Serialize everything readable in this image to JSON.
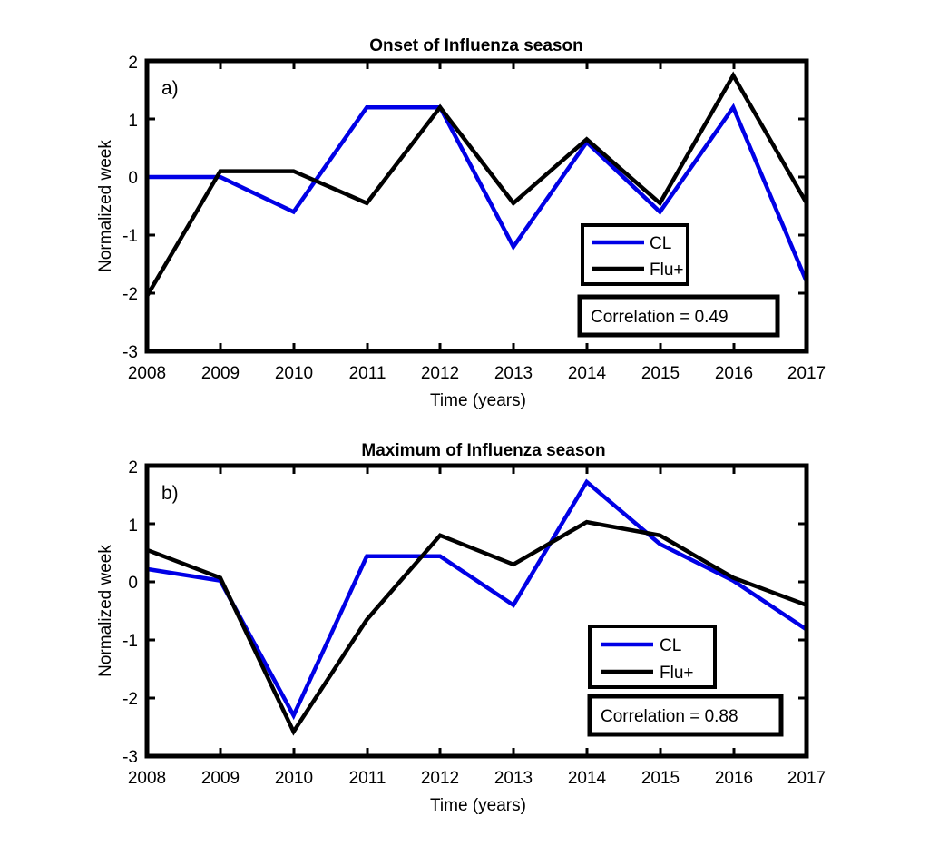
{
  "chart_data": [
    {
      "type": "line",
      "title": "Onset of Influenza season",
      "panel_label": "a)",
      "xlabel": "Time (years)",
      "ylabel": "Normalized week",
      "xlim": [
        2008,
        2017
      ],
      "ylim": [
        -3,
        2
      ],
      "x_ticks": [
        "2008",
        "2009",
        "2010",
        "2011",
        "2012",
        "2013",
        "2014",
        "2015",
        "2016",
        "2017"
      ],
      "y_ticks": [
        "2",
        "1",
        "0",
        "-1",
        "-2",
        "-3"
      ],
      "x": [
        2008,
        2009,
        2010,
        2011,
        2012,
        2013,
        2014,
        2015,
        2016,
        2017
      ],
      "series": [
        {
          "name": "CL",
          "color": "#0000e6",
          "values": [
            0,
            0,
            -0.6,
            1.2,
            1.2,
            -1.2,
            0.6,
            -0.6,
            1.2,
            -1.8
          ]
        },
        {
          "name": "Flu+",
          "color": "#000000",
          "values": [
            -2.05,
            0.1,
            0.1,
            -0.45,
            1.2,
            -0.45,
            0.65,
            -0.45,
            1.75,
            -0.45
          ]
        }
      ],
      "legend": {
        "position": "lower-right"
      },
      "annotation": "Correlation = 0.49"
    },
    {
      "type": "line",
      "title": "Maximum of Influenza season",
      "panel_label": "b)",
      "xlabel": "Time (years)",
      "ylabel": "Normalized week",
      "xlim": [
        2008,
        2017
      ],
      "ylim": [
        -3,
        2
      ],
      "x_ticks": [
        "2008",
        "2009",
        "2010",
        "2011",
        "2012",
        "2013",
        "2014",
        "2015",
        "2016",
        "2017"
      ],
      "y_ticks": [
        "2",
        "1",
        "0",
        "-1",
        "-2",
        "-3"
      ],
      "x": [
        2008,
        2009,
        2010,
        2011,
        2012,
        2013,
        2014,
        2015,
        2016,
        2017
      ],
      "series": [
        {
          "name": "CL",
          "color": "#0000e6",
          "values": [
            0.22,
            0.02,
            -2.3,
            0.44,
            0.44,
            -0.4,
            1.72,
            0.65,
            0.02,
            -0.82
          ]
        },
        {
          "name": "Flu+",
          "color": "#000000",
          "values": [
            0.55,
            0.07,
            -2.58,
            -0.65,
            0.8,
            0.3,
            1.03,
            0.8,
            0.07,
            -0.4
          ]
        }
      ],
      "legend": {
        "position": "lower-right"
      },
      "annotation": "Correlation = 0.88"
    }
  ]
}
